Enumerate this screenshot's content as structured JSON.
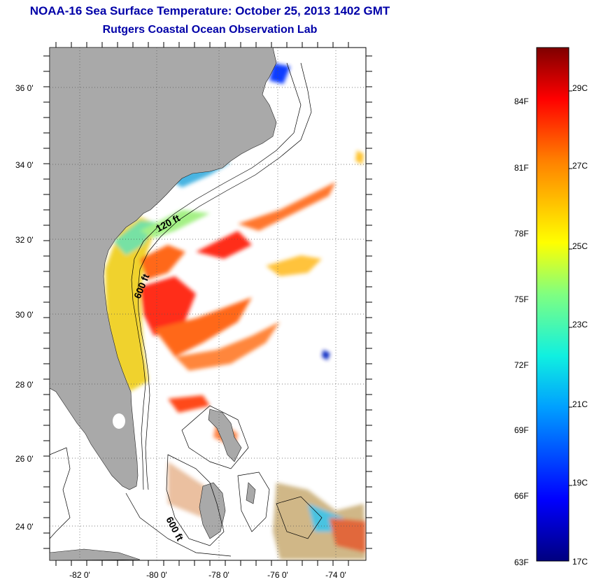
{
  "header": {
    "title": "NOAA-16 Sea Surface Temperature:  October 25, 2013 1402 GMT",
    "subtitle": "Rutgers Coastal Ocean Observation Lab"
  },
  "map": {
    "lon_ticks": [
      "-82 0'",
      "-80 0'",
      "-78 0'",
      "-76 0'",
      "-74 0'"
    ],
    "lat_ticks": [
      "36 0'",
      "34 0'",
      "32 0'",
      "30 0'",
      "28 0'",
      "26 0'",
      "24 0'"
    ],
    "contour_labels": [
      "120 ft",
      "600 ft",
      "600 ft"
    ],
    "colors": {
      "land": "#a9a9a9",
      "title": "#0000a8"
    }
  },
  "colorbar": {
    "fahrenheit_labels": [
      "84F",
      "81F",
      "78F",
      "75F",
      "72F",
      "69F",
      "66F",
      "63F"
    ],
    "celsius_labels": [
      "29C",
      "27C",
      "25C",
      "23C",
      "21C",
      "19C",
      "17C"
    ]
  }
}
